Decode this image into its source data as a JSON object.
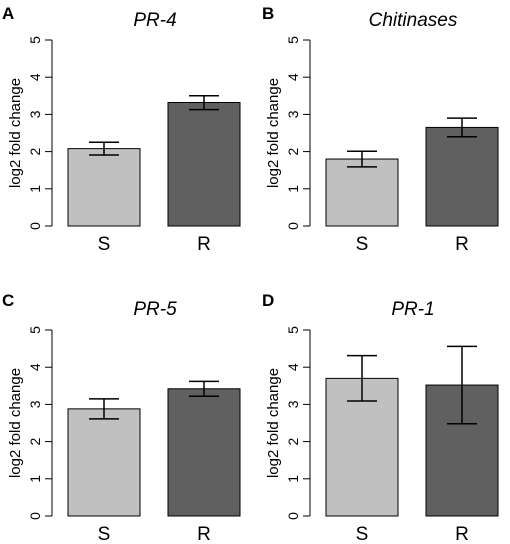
{
  "chart_data": [
    {
      "panel": "A",
      "type": "bar",
      "title": "PR-4",
      "ylabel": "log2 fold change",
      "ylim": [
        0,
        5
      ],
      "yticks": [
        "0",
        "1",
        "2",
        "3",
        "4",
        "5"
      ],
      "categories": [
        "S",
        "R"
      ],
      "values": [
        2.08,
        3.32
      ],
      "error": [
        [
          1.91,
          2.25
        ],
        [
          3.13,
          3.5
        ]
      ],
      "colors": [
        "#c0c0c0",
        "#606060"
      ]
    },
    {
      "panel": "B",
      "type": "bar",
      "title": "Chitinases",
      "ylabel": "log2 fold change",
      "ylim": [
        0,
        5
      ],
      "yticks": [
        "0",
        "1",
        "2",
        "3",
        "4",
        "5"
      ],
      "categories": [
        "S",
        "R"
      ],
      "values": [
        1.8,
        2.65
      ],
      "error": [
        [
          1.59,
          2.01
        ],
        [
          2.4,
          2.9
        ]
      ],
      "colors": [
        "#c0c0c0",
        "#606060"
      ]
    },
    {
      "panel": "C",
      "type": "bar",
      "title": "PR-5",
      "ylabel": "log2 fold change",
      "ylim": [
        0,
        5
      ],
      "yticks": [
        "0",
        "1",
        "2",
        "3",
        "4",
        "5"
      ],
      "categories": [
        "S",
        "R"
      ],
      "values": [
        2.88,
        3.42
      ],
      "error": [
        [
          2.61,
          3.15
        ],
        [
          3.22,
          3.62
        ]
      ],
      "colors": [
        "#c0c0c0",
        "#606060"
      ]
    },
    {
      "panel": "D",
      "type": "bar",
      "title": "PR-1",
      "ylabel": "log2 fold change",
      "ylim": [
        0,
        5
      ],
      "yticks": [
        "0",
        "1",
        "2",
        "3",
        "4",
        "5"
      ],
      "categories": [
        "S",
        "R"
      ],
      "values": [
        3.7,
        3.52
      ],
      "error": [
        [
          3.09,
          4.31
        ],
        [
          2.48,
          4.56
        ]
      ],
      "colors": [
        "#c0c0c0",
        "#606060"
      ]
    }
  ]
}
